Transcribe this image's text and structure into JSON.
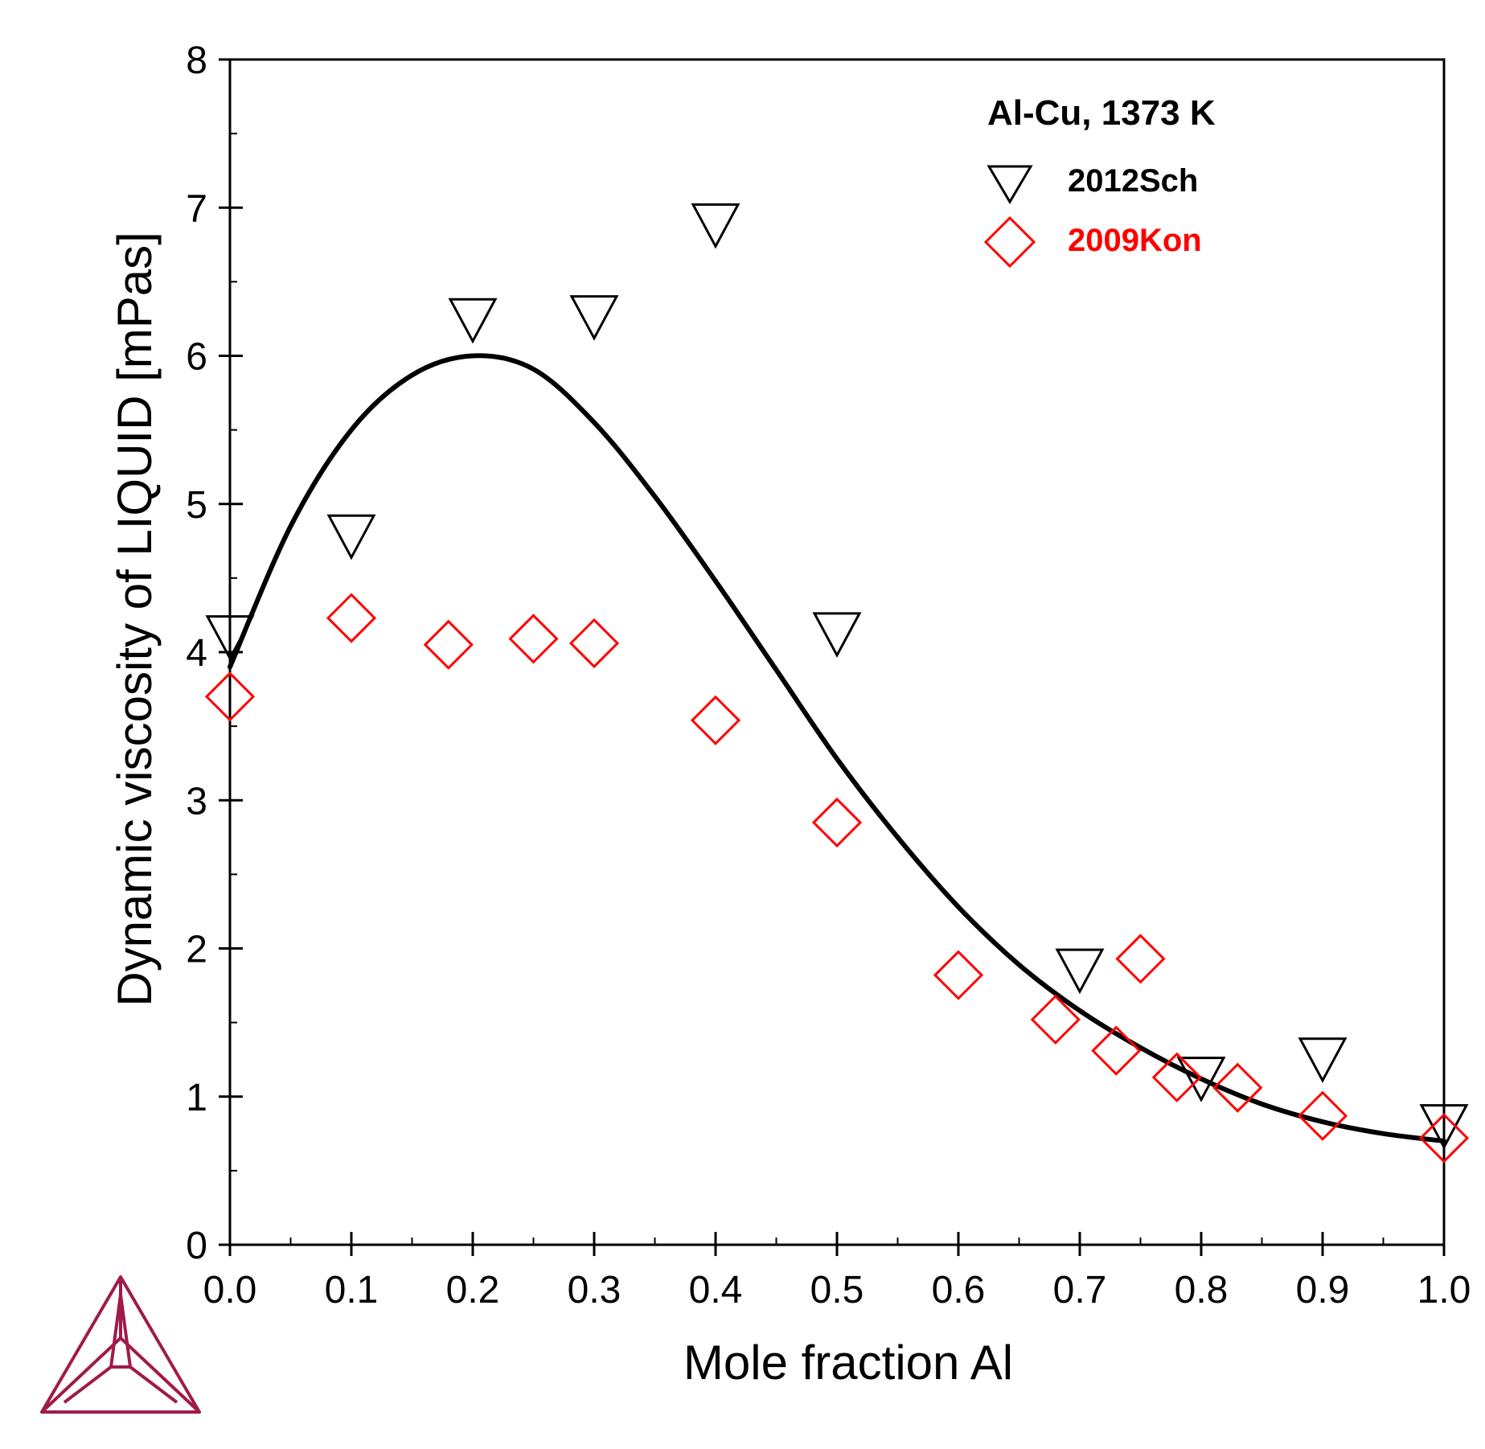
{
  "chart_data": {
    "type": "scatter",
    "title": "",
    "xlabel": "Mole fraction Al",
    "ylabel": "Dynamic viscosity of LIQUID [mPas]",
    "xlim": [
      0,
      1
    ],
    "ylim": [
      0,
      8
    ],
    "xticks": [
      "0.0",
      "0.1",
      "0.2",
      "0.3",
      "0.4",
      "0.5",
      "0.6",
      "0.7",
      "0.8",
      "0.9",
      "1.0"
    ],
    "yticks": [
      "0",
      "1",
      "2",
      "3",
      "4",
      "5",
      "6",
      "7",
      "8"
    ],
    "grid": false,
    "legend_title": "Al-Cu, 1373 K",
    "legend_position": "top-right",
    "curve": {
      "color": "#000000",
      "x": [
        0,
        0.05,
        0.1,
        0.15,
        0.2,
        0.25,
        0.3,
        0.35,
        0.4,
        0.45,
        0.5,
        0.55,
        0.6,
        0.65,
        0.7,
        0.75,
        0.8,
        0.85,
        0.9,
        0.95,
        1.0
      ],
      "y": [
        3.9,
        4.85,
        5.5,
        5.87,
        6.0,
        5.91,
        5.55,
        5.05,
        4.48,
        3.88,
        3.28,
        2.75,
        2.28,
        1.89,
        1.58,
        1.33,
        1.12,
        0.95,
        0.83,
        0.75,
        0.7
      ]
    },
    "series": [
      {
        "name": "2012Sch",
        "marker": "triangle-down",
        "color": "#000000",
        "x": [
          0.0,
          0.1,
          0.2,
          0.3,
          0.4,
          0.5,
          0.7,
          0.8,
          0.9,
          1.0
        ],
        "y": [
          4.1,
          4.78,
          6.24,
          6.26,
          6.88,
          4.12,
          1.85,
          1.12,
          1.25,
          0.8
        ]
      },
      {
        "name": "2009Kon",
        "marker": "diamond",
        "color": "#ff0000",
        "x": [
          0.0,
          0.1,
          0.18,
          0.25,
          0.3,
          0.4,
          0.5,
          0.6,
          0.68,
          0.73,
          0.75,
          0.78,
          0.83,
          0.9,
          1.0
        ],
        "y": [
          3.7,
          4.23,
          4.05,
          4.09,
          4.06,
          3.54,
          2.85,
          1.82,
          1.52,
          1.31,
          1.93,
          1.13,
          1.06,
          0.87,
          0.72
        ]
      }
    ]
  },
  "logo": {
    "name": "triangle-logo",
    "color": "#a01a4a"
  }
}
